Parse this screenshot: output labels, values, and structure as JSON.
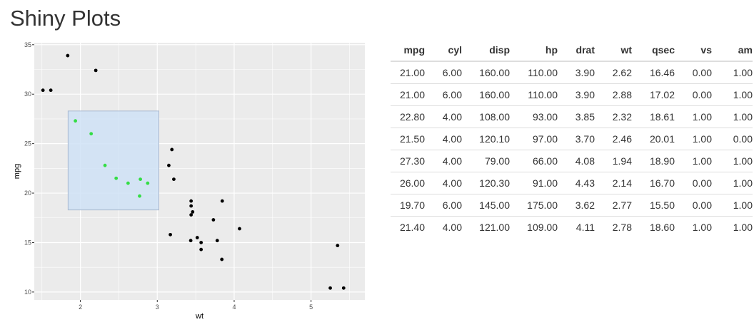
{
  "page": {
    "title": "Shiny Plots"
  },
  "colors": {
    "panel_bg": "#ebebeb",
    "grid": "#ffffff",
    "point": "#000000",
    "point_selected": "#33dd44",
    "brush_fill": "#cfe2f6",
    "brush_stroke": "#a9b9cf"
  },
  "chart_data": {
    "type": "scatter",
    "title": "",
    "xlabel": "wt",
    "ylabel": "mpg",
    "xlim": [
      1.4,
      5.7
    ],
    "ylim": [
      9.2,
      35.2
    ],
    "xticks": [
      2,
      3,
      4,
      5
    ],
    "yticks": [
      10,
      15,
      20,
      25,
      30,
      35
    ],
    "grid": true,
    "brush": {
      "x": [
        1.84,
        3.02
      ],
      "y": [
        18.3,
        28.3
      ]
    },
    "points": [
      {
        "x": 2.62,
        "y": 21.0,
        "selected": true
      },
      {
        "x": 2.875,
        "y": 21.0,
        "selected": true
      },
      {
        "x": 2.32,
        "y": 22.8,
        "selected": true
      },
      {
        "x": 3.215,
        "y": 21.4,
        "selected": false
      },
      {
        "x": 3.44,
        "y": 18.7,
        "selected": false
      },
      {
        "x": 3.46,
        "y": 18.1,
        "selected": false
      },
      {
        "x": 3.57,
        "y": 14.3,
        "selected": false
      },
      {
        "x": 3.19,
        "y": 24.4,
        "selected": false
      },
      {
        "x": 3.15,
        "y": 22.8,
        "selected": false
      },
      {
        "x": 3.44,
        "y": 19.2,
        "selected": false
      },
      {
        "x": 3.44,
        "y": 17.8,
        "selected": false
      },
      {
        "x": 4.07,
        "y": 16.4,
        "selected": false
      },
      {
        "x": 3.73,
        "y": 17.3,
        "selected": false
      },
      {
        "x": 3.78,
        "y": 15.2,
        "selected": false
      },
      {
        "x": 5.25,
        "y": 10.4,
        "selected": false
      },
      {
        "x": 5.424,
        "y": 10.4,
        "selected": false
      },
      {
        "x": 5.345,
        "y": 14.7,
        "selected": false
      },
      {
        "x": 2.2,
        "y": 32.4,
        "selected": false
      },
      {
        "x": 1.615,
        "y": 30.4,
        "selected": false
      },
      {
        "x": 1.835,
        "y": 33.9,
        "selected": false
      },
      {
        "x": 2.465,
        "y": 21.5,
        "selected": true
      },
      {
        "x": 3.52,
        "y": 15.5,
        "selected": false
      },
      {
        "x": 3.435,
        "y": 15.2,
        "selected": false
      },
      {
        "x": 3.84,
        "y": 13.3,
        "selected": false
      },
      {
        "x": 3.845,
        "y": 19.2,
        "selected": false
      },
      {
        "x": 1.935,
        "y": 27.3,
        "selected": true
      },
      {
        "x": 2.14,
        "y": 26.0,
        "selected": true
      },
      {
        "x": 1.513,
        "y": 30.4,
        "selected": false
      },
      {
        "x": 3.17,
        "y": 15.8,
        "selected": false
      },
      {
        "x": 2.77,
        "y": 19.7,
        "selected": true
      },
      {
        "x": 3.57,
        "y": 15.0,
        "selected": false
      },
      {
        "x": 2.78,
        "y": 21.4,
        "selected": true
      }
    ]
  },
  "table": {
    "columns": [
      "mpg",
      "cyl",
      "disp",
      "hp",
      "drat",
      "wt",
      "qsec",
      "vs",
      "am"
    ],
    "rows": [
      [
        "21.00",
        "6.00",
        "160.00",
        "110.00",
        "3.90",
        "2.62",
        "16.46",
        "0.00",
        "1.00"
      ],
      [
        "21.00",
        "6.00",
        "160.00",
        "110.00",
        "3.90",
        "2.88",
        "17.02",
        "0.00",
        "1.00"
      ],
      [
        "22.80",
        "4.00",
        "108.00",
        "93.00",
        "3.85",
        "2.32",
        "18.61",
        "1.00",
        "1.00"
      ],
      [
        "21.50",
        "4.00",
        "120.10",
        "97.00",
        "3.70",
        "2.46",
        "20.01",
        "1.00",
        "0.00"
      ],
      [
        "27.30",
        "4.00",
        "79.00",
        "66.00",
        "4.08",
        "1.94",
        "18.90",
        "1.00",
        "1.00"
      ],
      [
        "26.00",
        "4.00",
        "120.30",
        "91.00",
        "4.43",
        "2.14",
        "16.70",
        "0.00",
        "1.00"
      ],
      [
        "19.70",
        "6.00",
        "145.00",
        "175.00",
        "3.62",
        "2.77",
        "15.50",
        "0.00",
        "1.00"
      ],
      [
        "21.40",
        "4.00",
        "121.00",
        "109.00",
        "4.11",
        "2.78",
        "18.60",
        "1.00",
        "1.00"
      ]
    ]
  }
}
